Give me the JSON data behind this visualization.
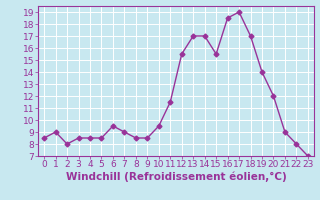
{
  "x": [
    0,
    1,
    2,
    3,
    4,
    5,
    6,
    7,
    8,
    9,
    10,
    11,
    12,
    13,
    14,
    15,
    16,
    17,
    18,
    19,
    20,
    21,
    22,
    23
  ],
  "y": [
    8.5,
    9.0,
    8.0,
    8.5,
    8.5,
    8.5,
    9.5,
    9.0,
    8.5,
    8.5,
    9.5,
    11.5,
    15.5,
    17.0,
    17.0,
    15.5,
    18.5,
    19.0,
    17.0,
    14.0,
    12.0,
    9.0,
    8.0,
    7.0
  ],
  "line_color": "#993399",
  "marker": "D",
  "marker_size": 2.5,
  "bg_color": "#c8e8f0",
  "grid_color": "#ffffff",
  "xlabel": "Windchill (Refroidissement éolien,°C)",
  "ylim": [
    7,
    19.5
  ],
  "xlim": [
    -0.5,
    23.5
  ],
  "yticks": [
    7,
    8,
    9,
    10,
    11,
    12,
    13,
    14,
    15,
    16,
    17,
    18,
    19
  ],
  "xticks": [
    0,
    1,
    2,
    3,
    4,
    5,
    6,
    7,
    8,
    9,
    10,
    11,
    12,
    13,
    14,
    15,
    16,
    17,
    18,
    19,
    20,
    21,
    22,
    23
  ],
  "tick_color": "#993399",
  "label_color": "#993399",
  "axis_color": "#993399",
  "fontsize": 6.5,
  "xlabel_fontsize": 7.5
}
